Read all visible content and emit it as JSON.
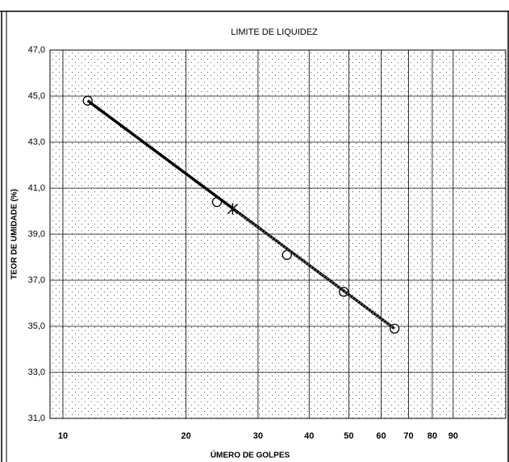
{
  "chart_data": {
    "type": "line",
    "title": "LIMITE DE LIQUIDEZ",
    "x_label": "ÚMERO DE GOLPES",
    "y_label": "TEOR DE UMIDADE (%)",
    "log_x": true,
    "grid": true,
    "xlim": [
      9.3,
      121
    ],
    "ylim": [
      31,
      47
    ],
    "xticks": [
      10,
      20,
      30,
      40,
      50,
      60,
      70,
      80,
      90
    ],
    "yticks": [
      {
        "value": 31,
        "label": "31,0"
      },
      {
        "value": 33,
        "label": "33,0"
      },
      {
        "value": 35,
        "label": "35,0"
      },
      {
        "value": 37,
        "label": "37,0"
      },
      {
        "value": 39,
        "label": "39,0"
      },
      {
        "value": 41,
        "label": "41,0"
      },
      {
        "value": 43,
        "label": "43,0"
      },
      {
        "value": 45,
        "label": "45,0"
      },
      {
        "value": 47,
        "label": "47,0"
      }
    ],
    "series": [
      {
        "color": "#000000",
        "style": "none",
        "marker": "circle",
        "x": [
          11.5,
          23.8,
          35.3,
          48.6,
          64.7
        ],
        "values": [
          44.8,
          40.4,
          38.1,
          36.5,
          34.9
        ]
      },
      {
        "color": "#000000",
        "style": "solid",
        "marker": "none",
        "x": [
          11.5,
          64.7
        ],
        "values": [
          44.8,
          34.9
        ]
      },
      {
        "color": "#555555",
        "style": "dotted",
        "marker": "none",
        "x": [
          26,
          64.7
        ],
        "values": [
          40.1,
          34.9
        ]
      },
      {
        "color": "#000000",
        "style": "none",
        "marker": "star",
        "x": [
          26
        ],
        "values": [
          40.1
        ]
      }
    ]
  }
}
